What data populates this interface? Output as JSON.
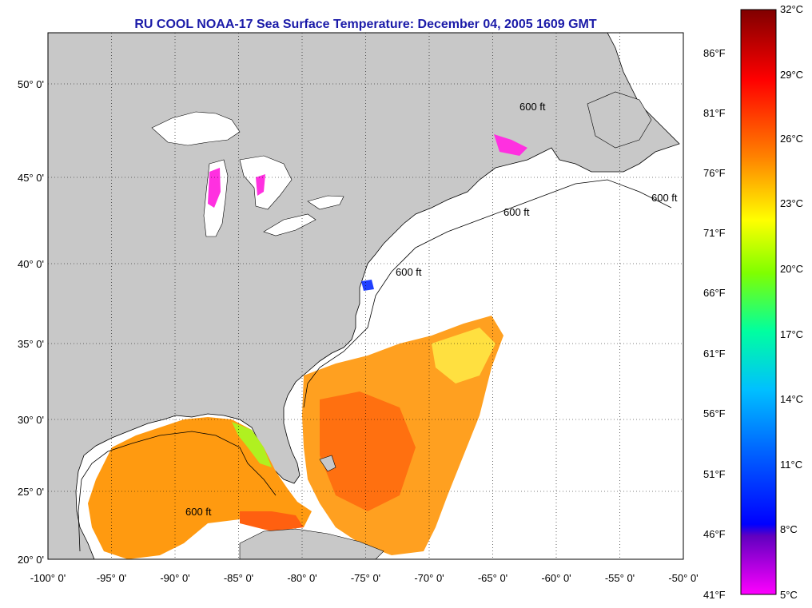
{
  "title": "RU COOL  NOAA-17  Sea Surface Temperature:  December 04, 2005 1609 GMT",
  "map": {
    "lon_ticks": [
      "-100° 0'",
      "-95° 0'",
      "-90° 0'",
      "-85° 0'",
      "-80° 0'",
      "-75° 0'",
      "-70° 0'",
      "-65° 0'",
      "-60° 0'",
      "-55° 0'",
      "-50° 0'"
    ],
    "lat_ticks": [
      "50° 0'",
      "45° 0'",
      "40° 0'",
      "35° 0'",
      "30° 0'",
      "25° 0'",
      "20° 0'"
    ],
    "contour_label": "600 ft",
    "land_color": "#c8c8c8",
    "ocean_color": "#ffffff"
  },
  "colorbar": {
    "celsius": [
      "32°C",
      "29°C",
      "26°C",
      "23°C",
      "20°C",
      "17°C",
      "14°C",
      "11°C",
      "8°C",
      "5°C"
    ],
    "fahrenheit": [
      "86°F",
      "81°F",
      "76°F",
      "71°F",
      "66°F",
      "61°F",
      "56°F",
      "51°F",
      "46°F",
      "41°F"
    ],
    "colors": [
      "#8b0000",
      "#ff0000",
      "#ff8000",
      "#ffff00",
      "#80ff00",
      "#00ffa0",
      "#00c0ff",
      "#0000ff",
      "#8000c0",
      "#ff00ff"
    ]
  }
}
